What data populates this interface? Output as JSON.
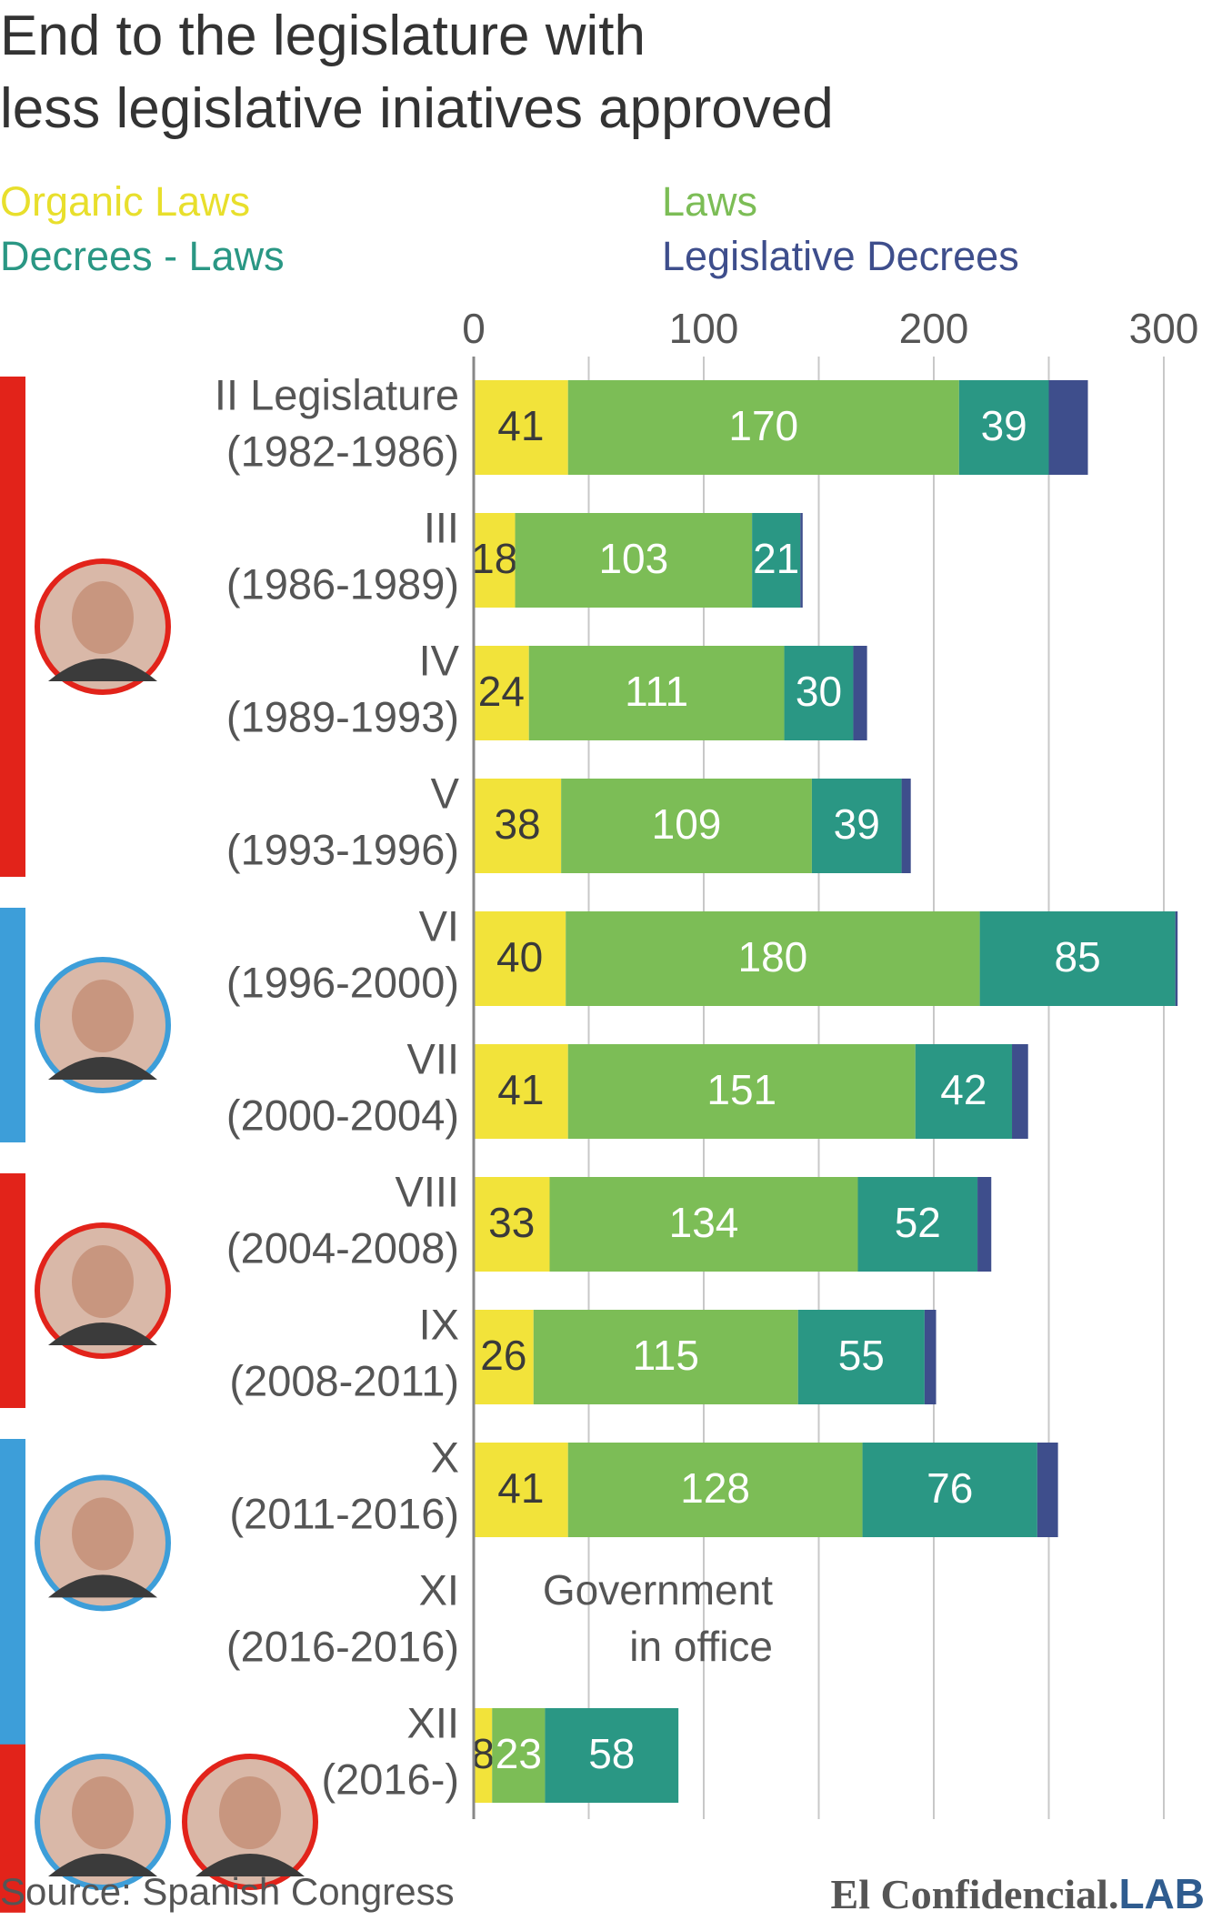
{
  "chart_data": {
    "type": "bar",
    "orientation": "horizontal",
    "stacked": true,
    "title": "End to the legislature with less legislative iniatives approved",
    "title_lines": [
      "End to the legislature with",
      "less legislative iniatives approved"
    ],
    "xlim": [
      0,
      300
    ],
    "ticks": [
      0,
      100,
      200,
      300
    ],
    "tick_labels": [
      "0",
      "100",
      "200",
      "300"
    ],
    "grid": true,
    "legend_position": "top",
    "series": [
      {
        "name": "Organic Laws",
        "color": "#f2e33a",
        "values": [
          41,
          18,
          24,
          38,
          40,
          41,
          33,
          26,
          41,
          0,
          8
        ]
      },
      {
        "name": "Laws",
        "color": "#7cbd56",
        "values": [
          170,
          103,
          111,
          109,
          180,
          151,
          134,
          115,
          128,
          0,
          23
        ]
      },
      {
        "name": "Decrees - Laws",
        "color": "#2a9784",
        "values": [
          39,
          21,
          30,
          39,
          85,
          42,
          52,
          55,
          76,
          0,
          58
        ]
      },
      {
        "name": "Legislative Decrees",
        "color": "#3e4e8c",
        "values": [
          17,
          1,
          6,
          4,
          1,
          7,
          6,
          5,
          9,
          0,
          0
        ]
      }
    ],
    "series_label_visible": [
      true,
      true,
      true,
      false
    ],
    "categories": [
      {
        "line1": "II Legislature",
        "line2": "(1982-1986)",
        "labels": [
          "41",
          "170",
          "39"
        ]
      },
      {
        "line1": "III",
        "line2": "(1986-1989)",
        "labels": [
          "18",
          "103",
          "21"
        ]
      },
      {
        "line1": "IV",
        "line2": "(1989-1993)",
        "labels": [
          "24",
          "111",
          "30"
        ]
      },
      {
        "line1": "V",
        "line2": "(1993-1996)",
        "labels": [
          "38",
          "109",
          "39"
        ]
      },
      {
        "line1": "VI",
        "line2": "(1996-2000)",
        "labels": [
          "40",
          "180",
          "85"
        ]
      },
      {
        "line1": "VII",
        "line2": "(2000-2004)",
        "labels": [
          "41",
          "151",
          "42"
        ]
      },
      {
        "line1": "VIII",
        "line2": "(2004-2008)",
        "labels": [
          "33",
          "134",
          "52"
        ]
      },
      {
        "line1": "IX",
        "line2": "(2008-2011)",
        "labels": [
          "26",
          "115",
          "55"
        ]
      },
      {
        "line1": "X",
        "line2": "(2011-2016)",
        "labels": [
          "41",
          "128",
          "76"
        ]
      },
      {
        "line1": "XI",
        "line2": "(2016-2016)",
        "labels": [
          "",
          "",
          ""
        ]
      },
      {
        "line1": "XII",
        "line2": "(2016-)",
        "labels": [
          "8",
          "23",
          "58"
        ]
      }
    ],
    "annotation": {
      "lines": [
        "Government",
        "in office"
      ],
      "category_index": 9
    },
    "government_bands": [
      {
        "party_color": "#e2231a",
        "from_category": 0,
        "to_category": 3
      },
      {
        "party_color": "#3d9ed9",
        "from_category": 4,
        "to_category": 5
      },
      {
        "party_color": "#e2231a",
        "from_category": 6,
        "to_category": 7
      },
      {
        "party_color": "#3d9ed9",
        "from_category": 8,
        "to_category": 10.3
      },
      {
        "party_color": "#e2231a",
        "from_category": 10.3,
        "to_category": 10.8
      }
    ],
    "portraits": [
      {
        "name": "portrait-1",
        "ring_color": "#e2231a",
        "category": 1.5
      },
      {
        "name": "portrait-2",
        "ring_color": "#3d9ed9",
        "category": 4.5
      },
      {
        "name": "portrait-3",
        "ring_color": "#e2231a",
        "category": 6.5
      },
      {
        "name": "portrait-4",
        "ring_color": "#3d9ed9",
        "category": 8.4
      },
      {
        "name": "portrait-5",
        "ring_color": "#3d9ed9",
        "category": 10.5
      },
      {
        "name": "portrait-6",
        "ring_color": "#e2231a",
        "category": 10.5,
        "offset": 1
      }
    ]
  },
  "source": "Source: Spanish Congress",
  "logo": {
    "serif": "El Confidencial",
    "dot": ".",
    "lab": "LAB"
  },
  "colors": {
    "grid": "#c8c8c8",
    "axis": "#888888",
    "label_dark": "#3a3a3a",
    "label_light": "#ffffff",
    "tick": "#555555"
  }
}
